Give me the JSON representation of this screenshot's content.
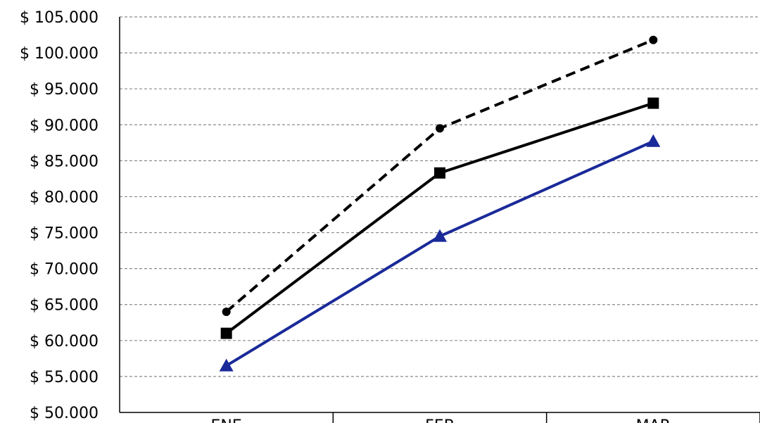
{
  "chart_data": {
    "type": "line",
    "categories": [
      "ENE",
      "FEB",
      "MAR"
    ],
    "ylim": [
      50000,
      105000
    ],
    "ytick_step": 5000,
    "ytick_labels": [
      "$ 50.000",
      "$ 55.000",
      "$ 60.000",
      "$ 65.000",
      "$ 70.000",
      "$ 75.000",
      "$ 80.000",
      "$ 85.000",
      "$ 90.000",
      "$ 95.000",
      "$ 100.000",
      "$ 105.000"
    ],
    "grid": true,
    "legend": "none",
    "series": [
      {
        "values": [
          64000,
          89500,
          101800
        ],
        "color": "#000000",
        "dash": true,
        "marker": "circle"
      },
      {
        "values": [
          61000,
          83300,
          93000
        ],
        "color": "#000000",
        "dash": false,
        "marker": "square"
      },
      {
        "values": [
          56500,
          74500,
          87700
        ],
        "color": "#1a2a99",
        "dash": false,
        "marker": "triangle"
      }
    ]
  }
}
